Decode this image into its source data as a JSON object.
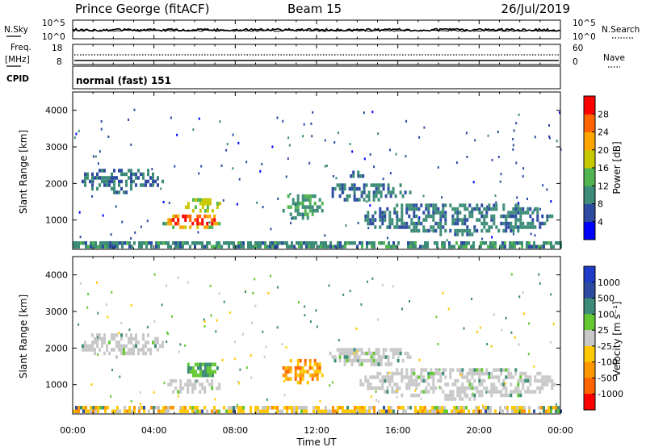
{
  "header": {
    "station": "Prince George (fitACF)",
    "beam": "Beam 15",
    "date": "26/Jul/2019"
  },
  "noise_panel": {
    "left_label": "N.Sky",
    "right_label": "N.Search",
    "left_ticks": [
      "10^5",
      "10^0"
    ],
    "right_ticks": [
      "10^5",
      "10^0"
    ]
  },
  "freq_panel": {
    "left_label": "Freq.",
    "left_unit": "[MHz]",
    "right_label": "Nave",
    "left_ticks": [
      "18",
      "8"
    ],
    "right_ticks": [
      "60",
      "0"
    ]
  },
  "cpid_panel": {
    "label": "CPID",
    "mode_text": "normal (fast) 151"
  },
  "colors": {
    "power_scale": [
      "#0000ff",
      "#2d4ba0",
      "#3c8c78",
      "#50b450",
      "#c8c800",
      "#ffa500",
      "#ff6400",
      "#ff0000"
    ],
    "velocity_scale": [
      "#ff0000",
      "#ff6400",
      "#ff9600",
      "#ffc800",
      "#c8c8c8",
      "#64c832",
      "#3c8c78",
      "#2d4ba0",
      "#1e3cc8"
    ],
    "ground_scatter": "#c8c8c8"
  },
  "chart_data": [
    {
      "type": "heatmap",
      "name": "power",
      "ylabel": "Slant Range [km]",
      "xlim": [
        "00:00",
        "24:00"
      ],
      "ylim": [
        200,
        4500
      ],
      "y_ticks": [
        "1000",
        "2000",
        "3000",
        "4000"
      ],
      "x_ticks": [
        "00:00",
        "04:00",
        "08:00",
        "12:00",
        "16:00",
        "20:00",
        "00:00"
      ],
      "colorbar": {
        "label": "Power [dB]",
        "range": [
          0,
          32
        ],
        "ticks": [
          "4",
          "8",
          "12",
          "16",
          "20",
          "24",
          "28"
        ]
      },
      "regions": [
        {
          "t0": 0.0,
          "t1": 24.0,
          "r0": 230,
          "r1": 420,
          "level": 10
        },
        {
          "t0": 0.2,
          "t1": 4.4,
          "r0": 1800,
          "r1": 2500,
          "level": 9
        },
        {
          "t0": 4.3,
          "t1": 7.4,
          "r0": 800,
          "r1": 1250,
          "level": 29
        },
        {
          "t0": 5.4,
          "t1": 7.2,
          "r0": 1250,
          "r1": 1700,
          "level": 17
        },
        {
          "t0": 10.2,
          "t1": 12.3,
          "r0": 1050,
          "r1": 1800,
          "level": 11
        },
        {
          "t0": 13.4,
          "t1": 14.3,
          "r0": 2150,
          "r1": 2450,
          "level": 8
        },
        {
          "t0": 12.5,
          "t1": 16.6,
          "r0": 1550,
          "r1": 2100,
          "level": 9
        },
        {
          "t0": 14.0,
          "t1": 23.8,
          "r0": 650,
          "r1": 1550,
          "level": 9
        }
      ]
    },
    {
      "type": "heatmap",
      "name": "velocity",
      "ylabel": "Slant Range [km]",
      "xlabel": "Time UT",
      "xlim": [
        "00:00",
        "24:00"
      ],
      "ylim": [
        200,
        4500
      ],
      "y_ticks": [
        "1000",
        "2000",
        "3000",
        "4000"
      ],
      "x_ticks": [
        "00:00",
        "04:00",
        "08:00",
        "12:00",
        "16:00",
        "20:00",
        "00:00"
      ],
      "colorbar": {
        "label": "Velocity [m s⁻¹]",
        "ticks": [
          "1000",
          "500",
          "100",
          "25",
          "-25",
          "-100",
          "-500",
          "-1000"
        ]
      },
      "regions": [
        {
          "t0": 0.0,
          "t1": 24.0,
          "r0": 230,
          "r1": 420,
          "kind": "mixed"
        },
        {
          "t0": 0.2,
          "t1": 4.4,
          "r0": 1800,
          "r1": 2500,
          "kind": "ground"
        },
        {
          "t0": 4.3,
          "t1": 7.4,
          "r0": 800,
          "r1": 1250,
          "kind": "ground"
        },
        {
          "t0": 5.4,
          "t1": 7.2,
          "r0": 1250,
          "r1": 1700,
          "kind": "positive"
        },
        {
          "t0": 10.2,
          "t1": 12.3,
          "r0": 1050,
          "r1": 1800,
          "kind": "negative"
        },
        {
          "t0": 12.5,
          "t1": 16.6,
          "r0": 1550,
          "r1": 2100,
          "kind": "ground"
        },
        {
          "t0": 14.0,
          "t1": 23.8,
          "r0": 650,
          "r1": 1550,
          "kind": "ground"
        }
      ]
    }
  ]
}
